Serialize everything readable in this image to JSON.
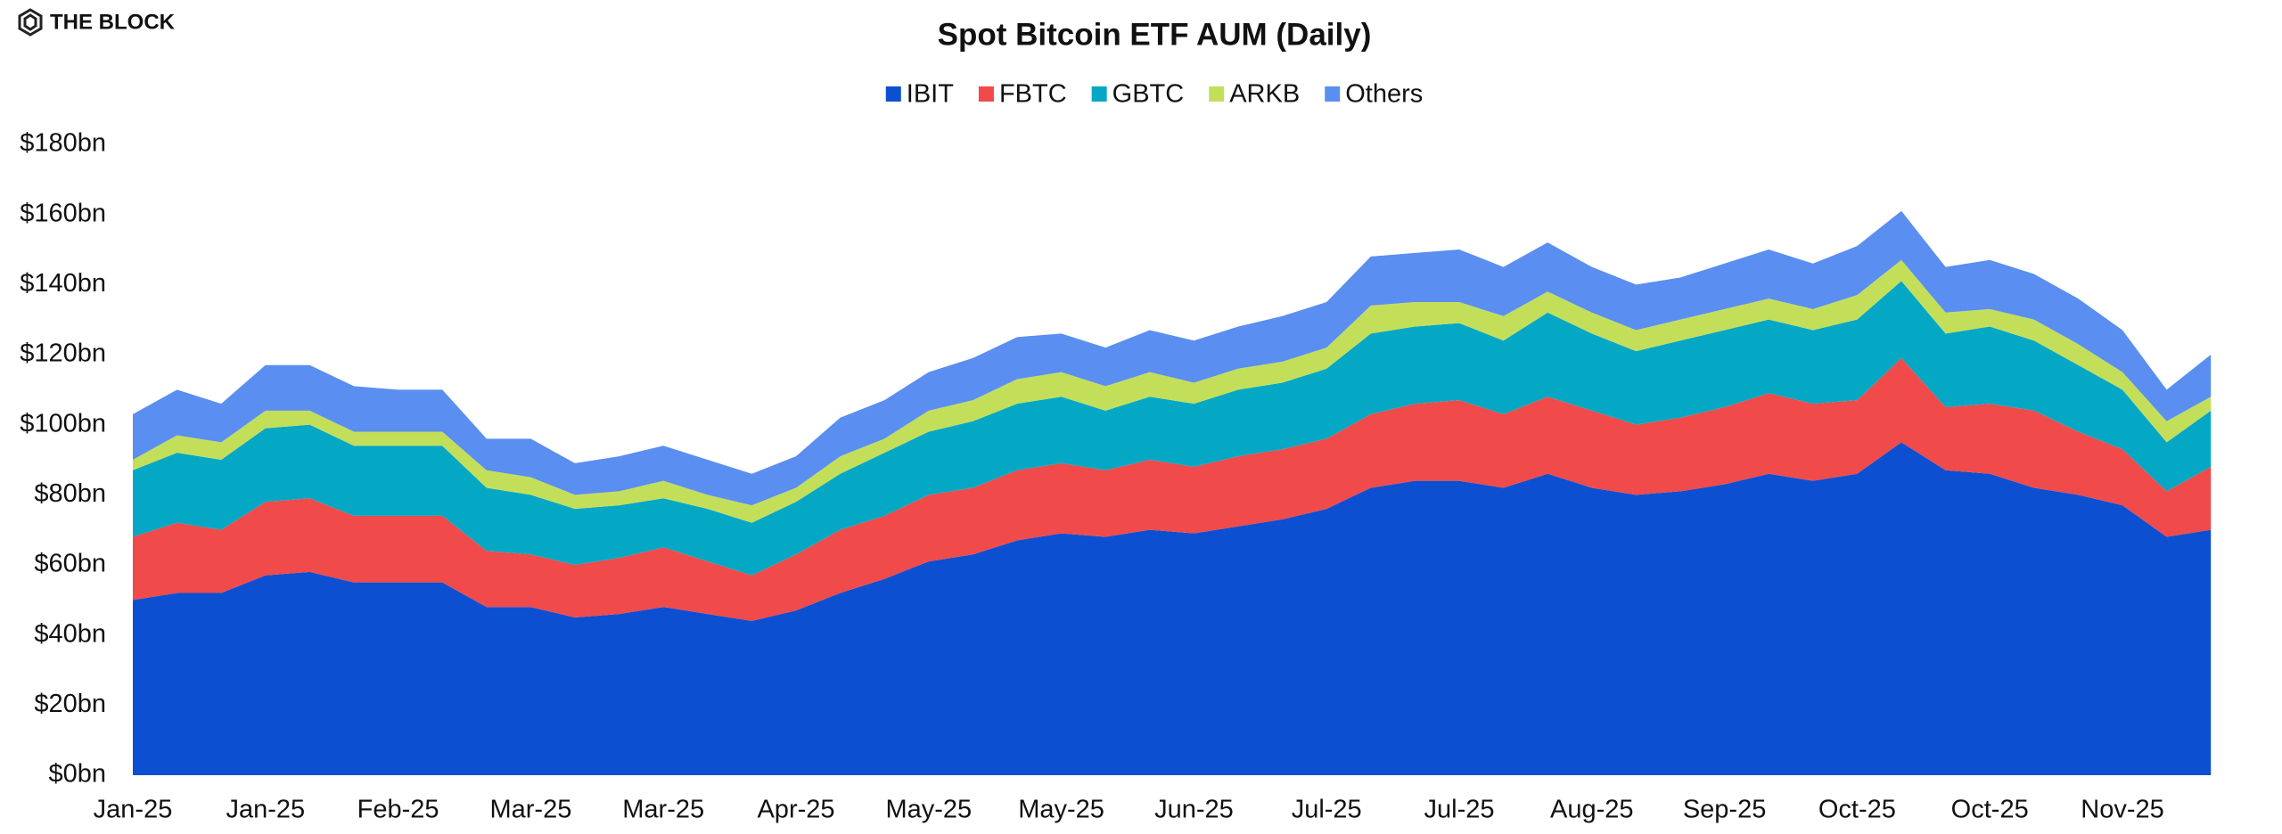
{
  "brand": "THE BLOCK",
  "chart_data": {
    "type": "stacked_area",
    "title": "Spot Bitcoin ETF AUM (Daily)",
    "categories": [
      "Jan-25",
      null,
      null,
      "Jan-25",
      null,
      null,
      "Feb-25",
      null,
      null,
      "Mar-25",
      null,
      null,
      "Mar-25",
      null,
      null,
      "Apr-25",
      null,
      null,
      "May-25",
      null,
      null,
      "May-25",
      null,
      null,
      "Jun-25",
      null,
      null,
      "Jul-25",
      null,
      null,
      "Jul-25",
      null,
      null,
      "Aug-25",
      null,
      null,
      "Sep-25",
      null,
      null,
      "Oct-25",
      null,
      null,
      "Oct-25",
      null,
      null,
      "Nov-25",
      null,
      null
    ],
    "series": [
      {
        "name": "IBIT",
        "color": "#0d4fd1",
        "values": [
          50,
          52,
          52,
          57,
          58,
          55,
          55,
          55,
          48,
          48,
          45,
          46,
          48,
          46,
          44,
          47,
          52,
          56,
          61,
          63,
          67,
          69,
          68,
          70,
          69,
          71,
          73,
          76,
          82,
          84,
          84,
          82,
          86,
          82,
          80,
          81,
          83,
          86,
          84,
          86,
          95,
          87,
          86,
          82,
          80,
          77,
          68,
          70
        ]
      },
      {
        "name": "FBTC",
        "color": "#f04a4a",
        "values": [
          18,
          20,
          18,
          21,
          21,
          19,
          19,
          19,
          16,
          15,
          15,
          16,
          17,
          15,
          13,
          16,
          18,
          18,
          19,
          19,
          20,
          20,
          19,
          20,
          19,
          20,
          20,
          20,
          21,
          22,
          23,
          21,
          22,
          22,
          20,
          21,
          22,
          23,
          22,
          21,
          24,
          18,
          20,
          22,
          18,
          16,
          13,
          18
        ]
      },
      {
        "name": "GBTC",
        "color": "#05a8c4",
        "values": [
          19,
          20,
          20,
          21,
          21,
          20,
          20,
          20,
          18,
          17,
          16,
          15,
          14,
          15,
          15,
          15,
          16,
          18,
          18,
          19,
          19,
          19,
          17,
          18,
          18,
          19,
          19,
          20,
          23,
          22,
          22,
          21,
          24,
          22,
          21,
          22,
          22,
          21,
          21,
          23,
          22,
          21,
          22,
          20,
          19,
          17,
          14,
          16
        ]
      },
      {
        "name": "ARKB",
        "color": "#c3df5a",
        "values": [
          3,
          5,
          5,
          5,
          4,
          4,
          4,
          4,
          5,
          5,
          4,
          4,
          5,
          4,
          5,
          4,
          5,
          4,
          6,
          6,
          7,
          7,
          7,
          7,
          6,
          6,
          6,
          6,
          8,
          7,
          6,
          7,
          6,
          6,
          6,
          6,
          6,
          6,
          6,
          7,
          6,
          6,
          5,
          6,
          6,
          5,
          6,
          4
        ]
      },
      {
        "name": "Others",
        "color": "#5a8ef0",
        "values": [
          13,
          13,
          11,
          13,
          13,
          13,
          12,
          12,
          9,
          11,
          9,
          10,
          10,
          10,
          9,
          9,
          11,
          11,
          11,
          12,
          12,
          11,
          11,
          12,
          12,
          12,
          13,
          13,
          14,
          14,
          15,
          14,
          14,
          13,
          13,
          12,
          13,
          14,
          13,
          14,
          14,
          13,
          14,
          13,
          13,
          12,
          9,
          12
        ]
      }
    ],
    "ylim": [
      0,
      180
    ],
    "yticks": [
      {
        "value": 0,
        "label": "$0bn"
      },
      {
        "value": 20,
        "label": "$20bn"
      },
      {
        "value": 40,
        "label": "$40bn"
      },
      {
        "value": 60,
        "label": "$60bn"
      },
      {
        "value": 80,
        "label": "$80bn"
      },
      {
        "value": 100,
        "label": "$100bn"
      },
      {
        "value": 120,
        "label": "$120bn"
      },
      {
        "value": 140,
        "label": "$140bn"
      },
      {
        "value": 160,
        "label": "$160bn"
      },
      {
        "value": 180,
        "label": "$180bn"
      }
    ],
    "legend": "top"
  }
}
